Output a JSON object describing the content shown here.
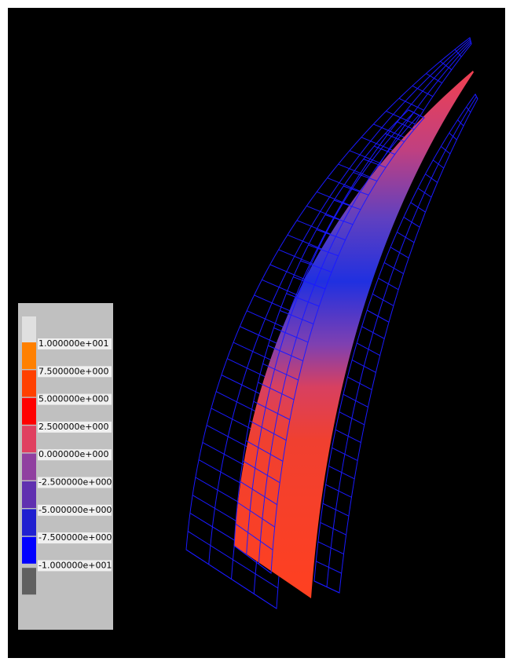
{
  "legend": {
    "entries": [
      {
        "label": "1.000000e+001",
        "color": "#ff8000"
      },
      {
        "label": "7.500000e+000",
        "color": "#ff4000"
      },
      {
        "label": "5.000000e+000",
        "color": "#ff0000"
      },
      {
        "label": "2.500000e+000",
        "color": "#e04060"
      },
      {
        "label": "0.000000e+000",
        "color": "#9040a0"
      },
      {
        "label": "-2.500000e+000",
        "color": "#6030b0"
      },
      {
        "label": "-5.000000e+000",
        "color": "#2020d0"
      },
      {
        "label": "-7.500000e+000",
        "color": "#0000ff"
      },
      {
        "label": "-1.000000e+001",
        "color": "#606060"
      }
    ],
    "top_color": "#e0e0e0"
  }
}
